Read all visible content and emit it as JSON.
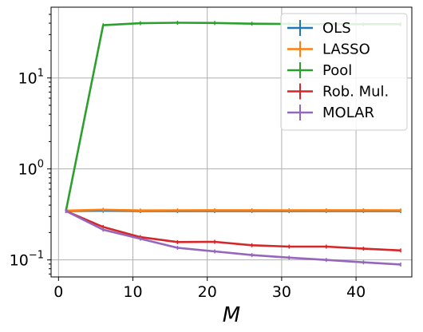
{
  "chart_data": {
    "type": "line",
    "xlabel": "M",
    "ylabel": "",
    "title": "",
    "yscale": "log",
    "xlim": [
      -1,
      47.5
    ],
    "ylim": [
      0.065,
      60
    ],
    "grid": true,
    "legend_position": "top-right",
    "x_ticks": [
      0,
      10,
      20,
      30,
      40
    ],
    "x_tick_labels": [
      "0",
      "10",
      "20",
      "30",
      "40"
    ],
    "y_ticks": [
      {
        "value": 0.1,
        "base": "10",
        "exp": "−1"
      },
      {
        "value": 1,
        "base": "10",
        "exp": "0"
      },
      {
        "value": 10,
        "base": "10",
        "exp": "1"
      }
    ],
    "x": [
      1,
      6,
      11,
      16,
      21,
      26,
      31,
      36,
      41,
      46
    ],
    "series": [
      {
        "name": "OLS",
        "color": "#1f77b4",
        "values": [
          0.345,
          0.347,
          0.344,
          0.345,
          0.345,
          0.345,
          0.344,
          0.345,
          0.345,
          0.344
        ]
      },
      {
        "name": "LASSO",
        "color": "#ff7f0e",
        "values": [
          0.348,
          0.356,
          0.35,
          0.351,
          0.352,
          0.352,
          0.351,
          0.352,
          0.352,
          0.351
        ]
      },
      {
        "name": "Pool",
        "color": "#2ca02c",
        "values": [
          0.345,
          38.0,
          40.0,
          40.5,
          40.2,
          39.5,
          39.2,
          39.0,
          39.0,
          39.0
        ]
      },
      {
        "name": "Rob. Mul.",
        "color": "#d62728",
        "values": [
          0.345,
          0.23,
          0.178,
          0.157,
          0.158,
          0.145,
          0.14,
          0.14,
          0.133,
          0.127
        ]
      },
      {
        "name": "MOLAR",
        "color": "#9467bd",
        "values": [
          0.345,
          0.215,
          0.171,
          0.136,
          0.124,
          0.113,
          0.106,
          0.1,
          0.094,
          0.089
        ]
      }
    ]
  }
}
